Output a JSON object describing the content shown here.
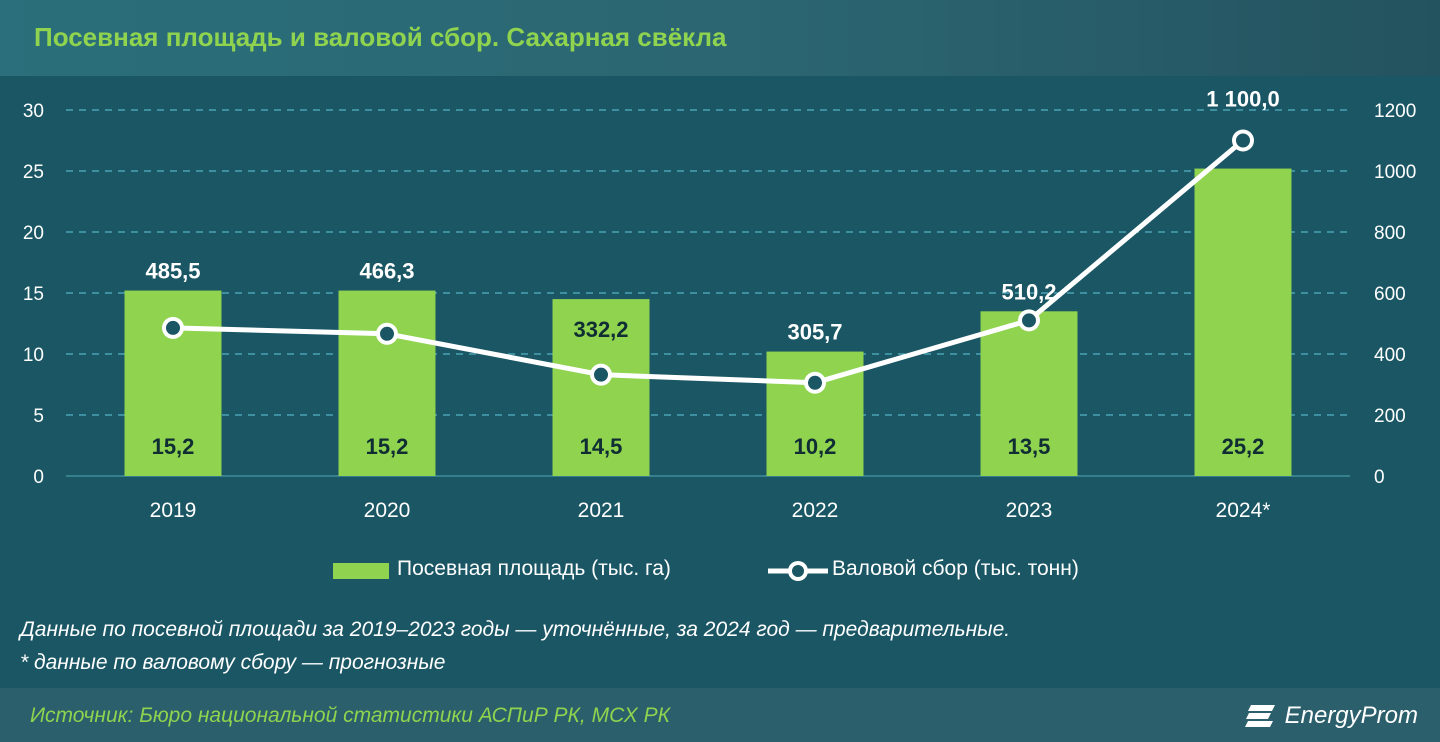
{
  "header": {
    "title": "Посевная площадь и валовой сбор. Сахарная свёкла"
  },
  "chart_data": {
    "type": "bar",
    "categories": [
      "2019",
      "2020",
      "2021",
      "2022",
      "2023",
      "2024*"
    ],
    "series": [
      {
        "name": "Посевная площадь (тыс. га)",
        "type": "bar",
        "axis": "left",
        "values": [
          15.2,
          15.2,
          14.5,
          10.2,
          13.5,
          25.2
        ],
        "labels": [
          "15,2",
          "15,2",
          "14,5",
          "10,2",
          "13,5",
          "25,2"
        ]
      },
      {
        "name": "Валовой сбор (тыс. тонн)",
        "type": "line",
        "axis": "right",
        "values": [
          485.5,
          466.3,
          332.2,
          305.7,
          510.2,
          1100.0
        ],
        "labels": [
          "485,5",
          "466,3",
          "332,2",
          "305,7",
          "510,2",
          "1 100,0"
        ]
      }
    ],
    "y_left": {
      "ylim": [
        0,
        30
      ],
      "ticks": [
        "0",
        "5",
        "10",
        "15",
        "20",
        "25",
        "30"
      ]
    },
    "y_right": {
      "ylim": [
        0,
        1200
      ],
      "ticks": [
        "0",
        "200",
        "400",
        "600",
        "800",
        "1000",
        "1200"
      ]
    },
    "grid": true,
    "legend_position": "bottom",
    "colors": {
      "bar": "#8fd34f",
      "line": "#ffffff",
      "grid": "#4aa3b5",
      "background": "#1a5664"
    }
  },
  "legend": {
    "bar_label": "Посевная площадь (тыс. га)",
    "line_label": "Валовой сбор (тыс. тонн)"
  },
  "notes": {
    "line1": "Данные по посевной площади за 2019–2023 годы — уточнённые, за 2024 год — предварительные.",
    "line2": "* данные по валовому сбору — прогнозные"
  },
  "footer": {
    "source": "Источник: Бюро национальной статистики АСПиР РК, МСХ РК",
    "logo_text": "EnergyProm"
  }
}
